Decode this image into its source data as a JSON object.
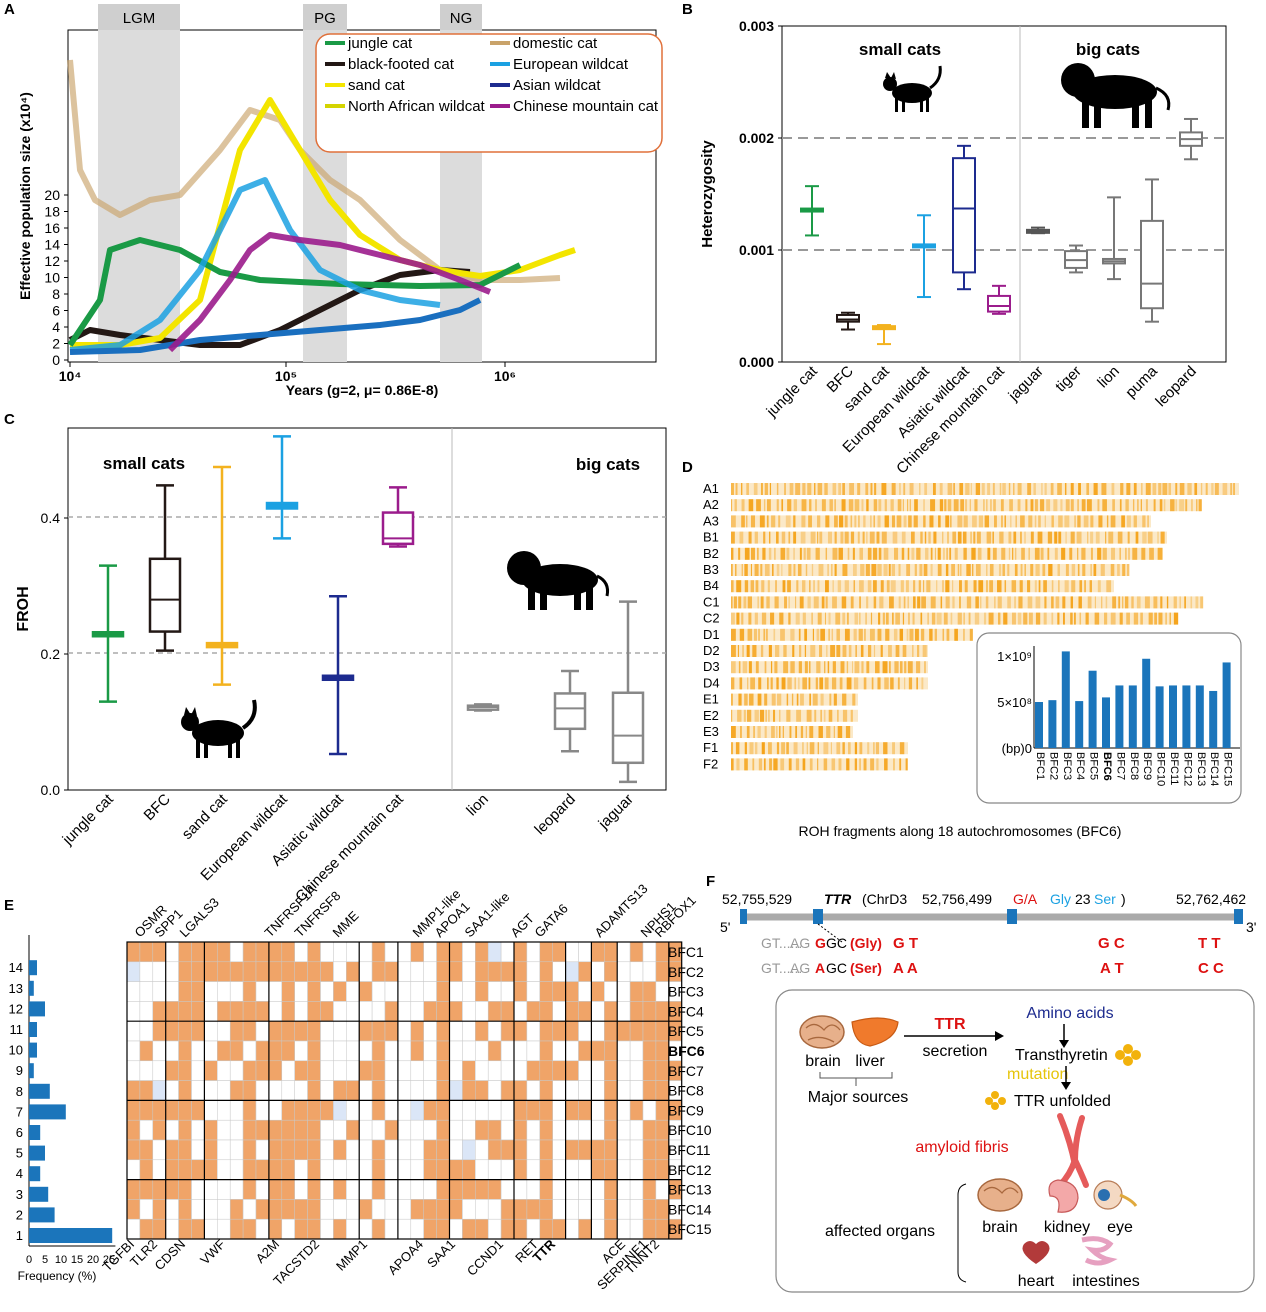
{
  "panels": {
    "A": {
      "letter": "A",
      "bands": [
        "LGM",
        "PG",
        "NG"
      ],
      "xlabel": "Years (g=2, μ= 0.86E-8)",
      "ylabel": "Effective population size (x10⁴)",
      "x_ticks": [
        "10⁴",
        "10⁵",
        "10⁶"
      ],
      "y_ticks": [
        "0",
        "2",
        "4",
        "6",
        "8",
        "10",
        "12",
        "14",
        "16",
        "18",
        "20"
      ],
      "legend": [
        {
          "name": "jungle cat",
          "color": "#1a9a46"
        },
        {
          "name": "domestic cat",
          "color": "#c9a36a"
        },
        {
          "name": "black-footed cat",
          "color": "#231815"
        },
        {
          "name": "European wildcat",
          "color": "#1ba1e2"
        },
        {
          "name": "sand cat",
          "color": "#f3e500"
        },
        {
          "name": "Asian wildcat",
          "color": "#1d2b8f"
        },
        {
          "name": "North African wildcat",
          "color": "#d4d400"
        },
        {
          "name": "Chinese mountain cat",
          "color": "#9b1c8c"
        }
      ]
    },
    "B": {
      "letter": "B",
      "ylabel": "Heterozygosity",
      "group_small": "small cats",
      "group_big": "big cats",
      "y_ticks": [
        "0.000",
        "0.001",
        "0.002",
        "0.003"
      ],
      "categories": [
        "jungle cat",
        "BFC",
        "sand cat",
        "European wildcat",
        "Asiatic wildcat",
        "Chinese mountain cat",
        "jaguar",
        "tiger",
        "lion",
        "puma",
        "leopard"
      ]
    },
    "C": {
      "letter": "C",
      "ylabel": "FROH",
      "group_small": "small cats",
      "group_big": "big cats",
      "y_ticks": [
        "0.0",
        "0.2",
        "0.4"
      ],
      "categories": [
        "jungle cat",
        "BFC",
        "sand cat",
        "European wildcat",
        "Asiatic wildcat",
        "Chinese mountain cat",
        "lion",
        "leopard",
        "jaguar"
      ]
    },
    "D": {
      "letter": "D",
      "rows": [
        "A1",
        "A2",
        "A3",
        "B1",
        "B2",
        "B3",
        "B4",
        "C1",
        "C2",
        "D1",
        "D2",
        "D3",
        "D4",
        "E1",
        "E2",
        "E3",
        "F1",
        "F2"
      ],
      "caption": "ROH fragments along 18 autochromosomes (BFC6)",
      "inset_y_ticks": [
        "1×10⁹",
        "5×10⁸",
        "(bp)0"
      ],
      "inset_labels": [
        "BFC1",
        "BFC2",
        "BFC3",
        "BFC4",
        "BFC5",
        "BFC6",
        "BFC7",
        "BFC8",
        "BFC9",
        "BFC10",
        "BFC11",
        "BFC12",
        "BFC13",
        "BFC14",
        "BFC15"
      ]
    },
    "E": {
      "letter": "E",
      "top_genes": [
        "OSMR",
        "SPP1",
        "LGALS3",
        "TNFRSF1A",
        "TNFRSF8",
        "MME",
        "MMP1-like",
        "APOA1",
        "SAA1-like",
        "AGT",
        "GATA6",
        "ADAMTS13",
        "NPHS1",
        "RBFOX1"
      ],
      "bottom_genes": [
        "TGFBI",
        "TLR2",
        "CDSN",
        "VWF",
        "A2M",
        "TACSTD2",
        "MMP1",
        "APOA4",
        "SAA1",
        "CCND1",
        "RET",
        "TTR",
        "ACE",
        "SERPINE1",
        "TNNT2"
      ],
      "row_labels": [
        "BFC1",
        "BFC2",
        "BFC3",
        "BFC4",
        "BFC5",
        "BFC6",
        "BFC7",
        "BFC8",
        "BFC9",
        "BFC10",
        "BFC11",
        "BFC12",
        "BFC13",
        "BFC14",
        "BFC15"
      ],
      "hist_y": [
        "14",
        "13",
        "12",
        "11",
        "10",
        "9",
        "8",
        "7",
        "6",
        "5",
        "4",
        "3",
        "2",
        "1"
      ],
      "hist_x_ticks": [
        "0",
        "5",
        "10",
        "15",
        "20",
        "25"
      ],
      "hist_xlabel": "Frequency (%)"
    },
    "F": {
      "letter": "F",
      "pos_left": "52,755,529",
      "gene": "TTR",
      "chr": "(ChrD3",
      "pos_mid": "52,756,499",
      "snp": "G/A",
      "aa1": "Gly",
      "aa_num": "23",
      "aa2": "Ser",
      "close": ")",
      "pos_right": "52,762,462",
      "five": "5'",
      "three": "3'",
      "seq1_gt": "GT......",
      "seq1_ag": "AG",
      "seq1_base": "G",
      "seq1_gc": "GC",
      "seq1_aa": "(Gly)",
      "seq1_g1": "G T",
      "seq1_g2": "G C",
      "seq1_g3": "T T",
      "seq2_gt": "GT......",
      "seq2_ag": "AG",
      "seq2_base": "A",
      "seq2_gc": "GC",
      "seq2_aa": "(Ser)",
      "seq2_g1": "A A",
      "seq2_g2": "A T",
      "seq2_g3": "C C",
      "ttr": "TTR",
      "secretion": "secretion",
      "amino": "Amino acids",
      "brain": "brain",
      "liver": "liver",
      "transthyretin": "Transthyretin",
      "mutation": "mutation",
      "major": "Major sources",
      "unfolded": "TTR unfolded",
      "fibris": "amyloid fibris",
      "affected": "affected organs",
      "o_brain": "brain",
      "o_kidney": "kidney",
      "o_eye": "eye",
      "o_heart": "heart",
      "o_intestines": "intestines"
    }
  }
}
